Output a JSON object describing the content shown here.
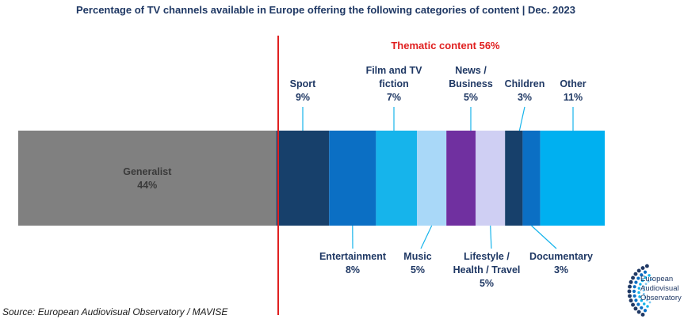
{
  "chart_data": {
    "type": "bar",
    "title": "Percentage of TV channels available in Europe offering the following categories of content | Dec. 2023",
    "annotation": "Thematic content 56%",
    "source": "Source: European Audiovisual Observatory / MAVISE",
    "logo_text": [
      "European",
      "Audiovisual",
      "Observatory"
    ],
    "categories": [
      "Generalist",
      "Sport",
      "Entertainment",
      "Film and TV fiction",
      "Music",
      "News / Business",
      "Lifestyle / Health / Travel",
      "Children",
      "Documentary",
      "Other"
    ],
    "values": [
      44,
      9,
      8,
      7,
      5,
      5,
      5,
      3,
      3,
      11
    ],
    "segments": [
      {
        "name": "Generalist",
        "label_lines": [
          "Generalist"
        ],
        "value": 44,
        "value_label": "44%",
        "color": "#808080",
        "position": "inside"
      },
      {
        "name": "Sport",
        "label_lines": [
          "Sport"
        ],
        "value": 9,
        "value_label": "9%",
        "color": "#17406b",
        "position": "above"
      },
      {
        "name": "Entertainment",
        "label_lines": [
          "Entertainment"
        ],
        "value": 8,
        "value_label": "8%",
        "color": "#0b6fc4",
        "position": "below"
      },
      {
        "name": "Film and TV fiction",
        "label_lines": [
          "Film and TV",
          "fiction"
        ],
        "value": 7,
        "value_label": "7%",
        "color": "#16b4eb",
        "position": "above"
      },
      {
        "name": "Music",
        "label_lines": [
          "Music"
        ],
        "value": 5,
        "value_label": "5%",
        "color": "#a9d8f8",
        "position": "below"
      },
      {
        "name": "News / Business",
        "label_lines": [
          "News /",
          "Business"
        ],
        "value": 5,
        "value_label": "5%",
        "color": "#7030a0",
        "position": "above"
      },
      {
        "name": "Lifestyle / Health / Travel",
        "label_lines": [
          "Lifestyle /",
          "Health / Travel"
        ],
        "value": 5,
        "value_label": "5%",
        "color": "#cfcff3",
        "position": "below"
      },
      {
        "name": "Children",
        "label_lines": [
          "Children"
        ],
        "value": 3,
        "value_label": "3%",
        "color": "#17406b",
        "position": "above"
      },
      {
        "name": "Documentary",
        "label_lines": [
          "Documentary"
        ],
        "value": 3,
        "value_label": "3%",
        "color": "#0b6fc4",
        "position": "below"
      },
      {
        "name": "Other",
        "label_lines": [
          "Other"
        ],
        "value": 11,
        "value_label": "11%",
        "color": "#00b0f0",
        "position": "above"
      }
    ],
    "divider_color": "#e02020",
    "leader_color": "#16b4eb"
  }
}
